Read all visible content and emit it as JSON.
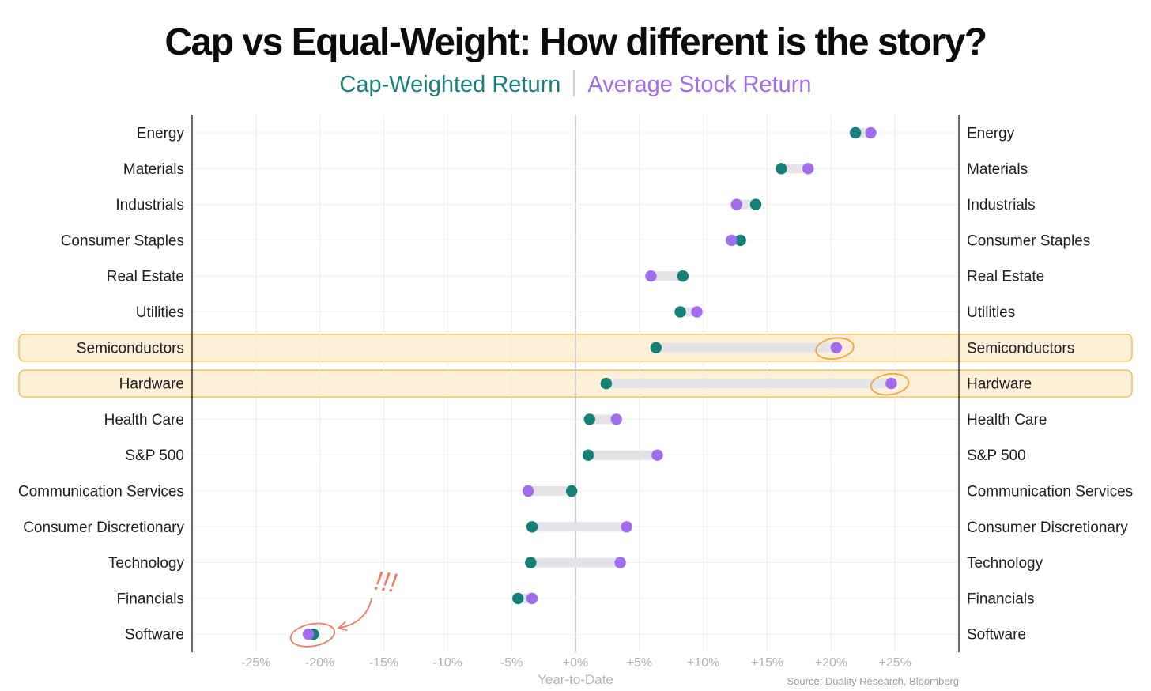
{
  "chart_data": {
    "type": "dumbbell",
    "title": "Cap vs Equal-Weight: How different is the story?",
    "legend": [
      {
        "name": "Cap-Weighted Return",
        "color": "#13807a"
      },
      {
        "name": "Average Stock Return",
        "color": "#a36cf0"
      }
    ],
    "xlabel": "Year-to-Date",
    "xlim": [
      -30,
      30
    ],
    "xticks": [
      -25,
      -20,
      -15,
      -10,
      -5,
      0,
      5,
      10,
      15,
      20,
      25
    ],
    "xtick_labels": [
      "-25%",
      "-20%",
      "-15%",
      "-10%",
      "-5%",
      "+0%",
      "+5%",
      "+10%",
      "+15%",
      "+20%",
      "+25%"
    ],
    "grid": true,
    "categories": [
      "Energy",
      "Materials",
      "Industrials",
      "Consumer Staples",
      "Real Estate",
      "Utilities",
      "Semiconductors",
      "Hardware",
      "Health Care",
      "S&P 500",
      "Communication Services",
      "Consumer Discretionary",
      "Technology",
      "Financials",
      "Software"
    ],
    "series": [
      {
        "name": "Cap-Weighted Return",
        "values": [
          21.9,
          16.1,
          14.1,
          12.9,
          8.4,
          8.2,
          6.3,
          2.4,
          1.1,
          1.0,
          -0.3,
          -3.4,
          -3.5,
          -4.5,
          -20.5
        ]
      },
      {
        "name": "Average Stock Return",
        "values": [
          23.1,
          18.2,
          12.6,
          12.2,
          5.9,
          9.5,
          20.4,
          24.7,
          3.2,
          6.4,
          -3.7,
          4.0,
          3.5,
          -3.4,
          -20.9
        ]
      }
    ],
    "highlighted": [
      "Semiconductors",
      "Hardware"
    ],
    "annotation": "!!!",
    "source": "Source: Duality Research, Bloomberg"
  }
}
